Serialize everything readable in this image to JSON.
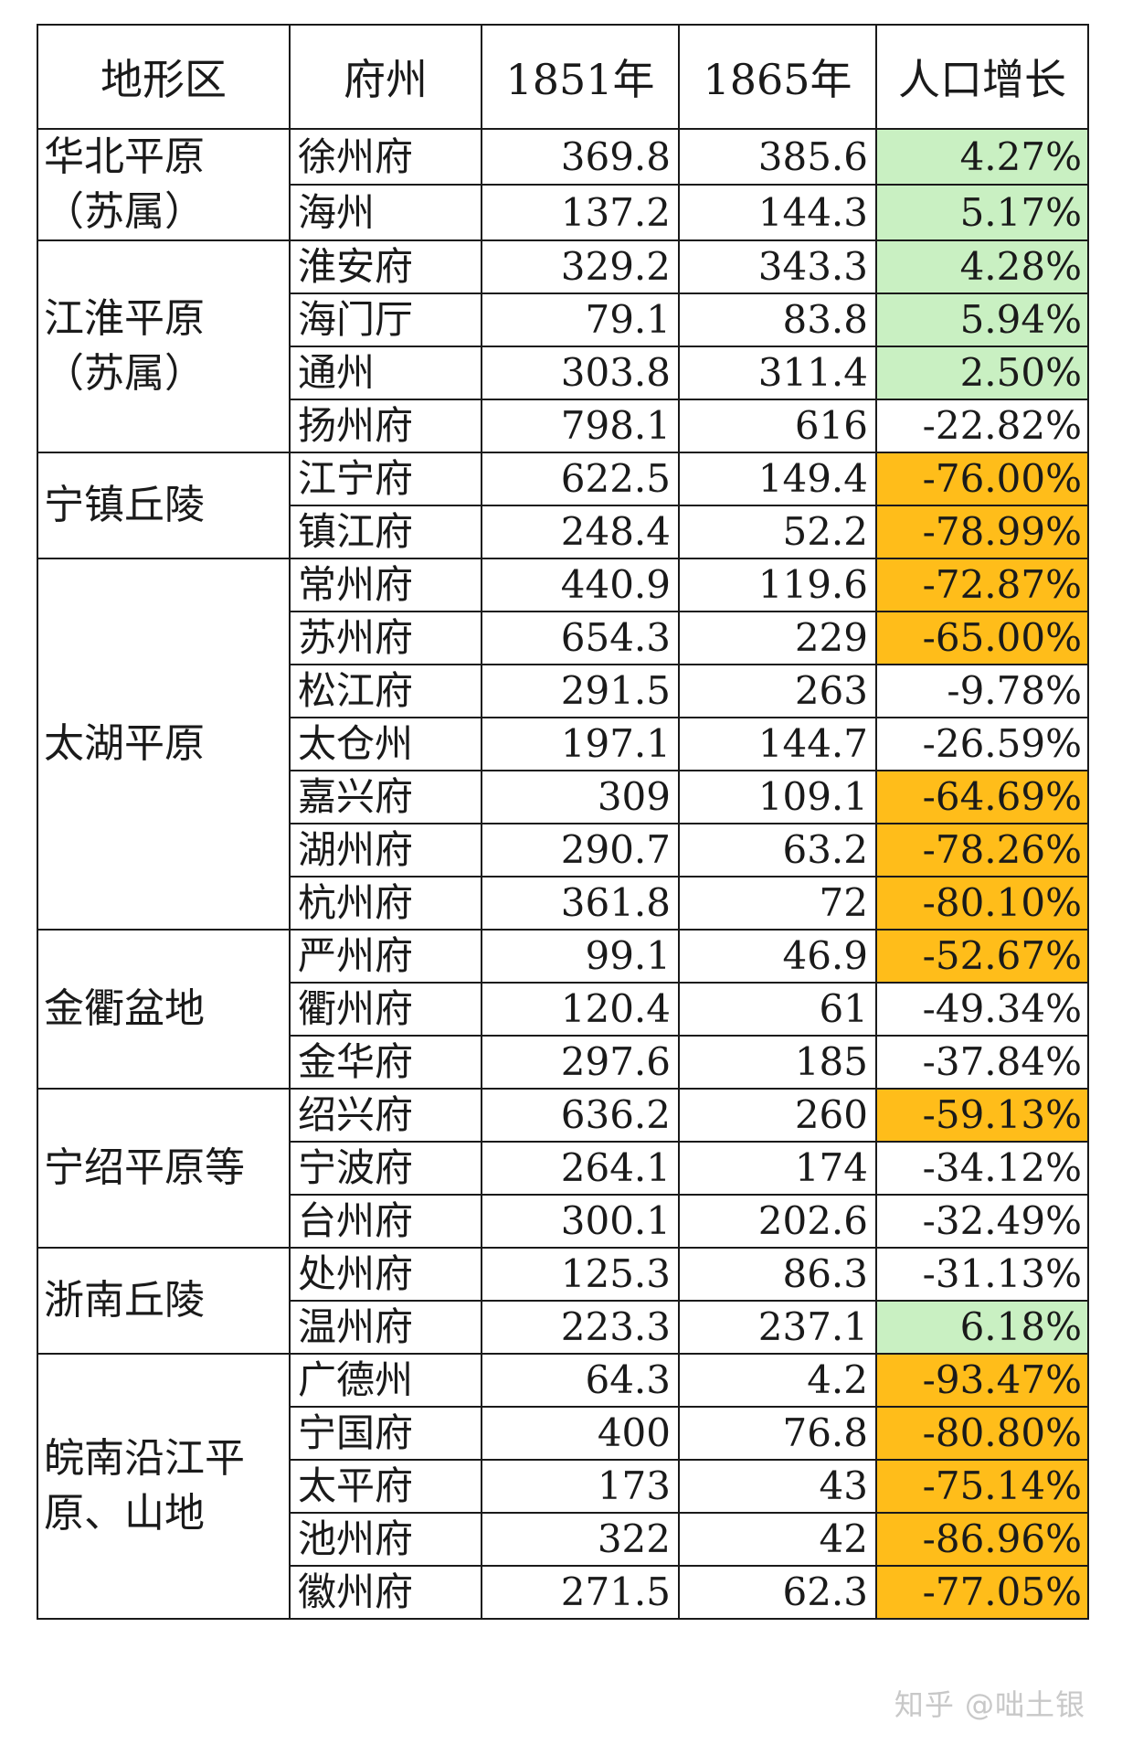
{
  "headers": [
    "地形区",
    "府州",
    "1851年",
    "1865年",
    "人口增长"
  ],
  "regions": [
    {
      "name": "华北平原（苏属）",
      "rows": [
        {
          "prefecture": "徐州府",
          "y1851": "369.8",
          "y1865": "385.6",
          "growth": "4.27%",
          "highlight": "green"
        },
        {
          "prefecture": "海州",
          "y1851": "137.2",
          "y1865": "144.3",
          "growth": "5.17%",
          "highlight": "green"
        }
      ]
    },
    {
      "name": "江淮平原（苏属）",
      "rows": [
        {
          "prefecture": "淮安府",
          "y1851": "329.2",
          "y1865": "343.3",
          "growth": "4.28%",
          "highlight": "green"
        },
        {
          "prefecture": "海门厅",
          "y1851": "79.1",
          "y1865": "83.8",
          "growth": "5.94%",
          "highlight": "green"
        },
        {
          "prefecture": "通州",
          "y1851": "303.8",
          "y1865": "311.4",
          "growth": "2.50%",
          "highlight": "green"
        },
        {
          "prefecture": "扬州府",
          "y1851": "798.1",
          "y1865": "616",
          "growth": "-22.82%",
          "highlight": "none"
        }
      ]
    },
    {
      "name": "宁镇丘陵",
      "rows": [
        {
          "prefecture": "江宁府",
          "y1851": "622.5",
          "y1865": "149.4",
          "growth": "-76.00%",
          "highlight": "orange"
        },
        {
          "prefecture": "镇江府",
          "y1851": "248.4",
          "y1865": "52.2",
          "growth": "-78.99%",
          "highlight": "orange"
        }
      ]
    },
    {
      "name": "太湖平原",
      "rows": [
        {
          "prefecture": "常州府",
          "y1851": "440.9",
          "y1865": "119.6",
          "growth": "-72.87%",
          "highlight": "orange"
        },
        {
          "prefecture": "苏州府",
          "y1851": "654.3",
          "y1865": "229",
          "growth": "-65.00%",
          "highlight": "orange"
        },
        {
          "prefecture": "松江府",
          "y1851": "291.5",
          "y1865": "263",
          "growth": "-9.78%",
          "highlight": "none"
        },
        {
          "prefecture": "太仓州",
          "y1851": "197.1",
          "y1865": "144.7",
          "growth": "-26.59%",
          "highlight": "none"
        },
        {
          "prefecture": "嘉兴府",
          "y1851": "309",
          "y1865": "109.1",
          "growth": "-64.69%",
          "highlight": "orange"
        },
        {
          "prefecture": "湖州府",
          "y1851": "290.7",
          "y1865": "63.2",
          "growth": "-78.26%",
          "highlight": "orange"
        },
        {
          "prefecture": "杭州府",
          "y1851": "361.8",
          "y1865": "72",
          "growth": "-80.10%",
          "highlight": "orange"
        }
      ]
    },
    {
      "name": "金衢盆地",
      "rows": [
        {
          "prefecture": "严州府",
          "y1851": "99.1",
          "y1865": "46.9",
          "growth": "-52.67%",
          "highlight": "orange"
        },
        {
          "prefecture": "衢州府",
          "y1851": "120.4",
          "y1865": "61",
          "growth": "-49.34%",
          "highlight": "none"
        },
        {
          "prefecture": "金华府",
          "y1851": "297.6",
          "y1865": "185",
          "growth": "-37.84%",
          "highlight": "none"
        }
      ]
    },
    {
      "name": "宁绍平原等",
      "rows": [
        {
          "prefecture": "绍兴府",
          "y1851": "636.2",
          "y1865": "260",
          "growth": "-59.13%",
          "highlight": "orange"
        },
        {
          "prefecture": "宁波府",
          "y1851": "264.1",
          "y1865": "174",
          "growth": "-34.12%",
          "highlight": "none"
        },
        {
          "prefecture": "台州府",
          "y1851": "300.1",
          "y1865": "202.6",
          "growth": "-32.49%",
          "highlight": "none"
        }
      ]
    },
    {
      "name": "浙南丘陵",
      "rows": [
        {
          "prefecture": "处州府",
          "y1851": "125.3",
          "y1865": "86.3",
          "growth": "-31.13%",
          "highlight": "none"
        },
        {
          "prefecture": "温州府",
          "y1851": "223.3",
          "y1865": "237.1",
          "growth": "6.18%",
          "highlight": "green"
        }
      ]
    },
    {
      "name": "皖南沿江平原、山地",
      "rows": [
        {
          "prefecture": "广德州",
          "y1851": "64.3",
          "y1865": "4.2",
          "growth": "-93.47%",
          "highlight": "orange"
        },
        {
          "prefecture": "宁国府",
          "y1851": "400",
          "y1865": "76.8",
          "growth": "-80.80%",
          "highlight": "orange"
        },
        {
          "prefecture": "太平府",
          "y1851": "173",
          "y1865": "43",
          "growth": "-75.14%",
          "highlight": "orange"
        },
        {
          "prefecture": "池州府",
          "y1851": "322",
          "y1865": "42",
          "growth": "-86.96%",
          "highlight": "orange"
        },
        {
          "prefecture": "徽州府",
          "y1851": "271.5",
          "y1865": "62.3",
          "growth": "-77.05%",
          "highlight": "orange"
        }
      ]
    }
  ],
  "colors": {
    "green": "#c9f0c2",
    "orange": "#ffbd1a"
  },
  "watermark": "知乎 @咄土银"
}
